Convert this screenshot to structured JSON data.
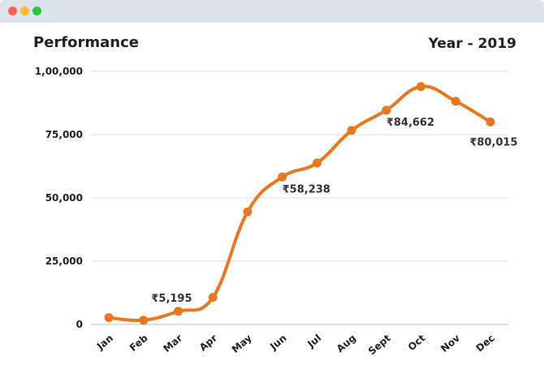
{
  "window": {
    "controls": [
      "close-dot",
      "minimize-dot",
      "maximize-dot"
    ]
  },
  "chart_data": {
    "type": "line",
    "title": "Performance",
    "subtitle": "Year - 2019",
    "xlabel": "",
    "ylabel": "",
    "categories": [
      "Jan",
      "Feb",
      "Mar",
      "Apr",
      "May",
      "Jun",
      "Jul",
      "Aug",
      "Sept",
      "Oct",
      "Nov",
      "Dec"
    ],
    "series": [
      {
        "values": [
          2700,
          1700,
          5195,
          10700,
          44500,
          58238,
          63800,
          76700,
          84662,
          94000,
          88200,
          80015
        ],
        "color": "#e87722"
      }
    ],
    "y_ticks": [
      "0",
      "25,000",
      "50,000",
      "75,000",
      "1,00,000"
    ],
    "y_tick_values": [
      0,
      25000,
      50000,
      75000,
      100000
    ],
    "ylim": [
      0,
      100000
    ],
    "grid": true,
    "smooth": true,
    "annotations": [
      {
        "category": "Mar",
        "text": "₹5,195"
      },
      {
        "category": "Jun",
        "text": "₹58,238"
      },
      {
        "category": "Sept",
        "text": "₹84,662"
      },
      {
        "category": "Dec",
        "text": "₹80,015"
      }
    ]
  }
}
